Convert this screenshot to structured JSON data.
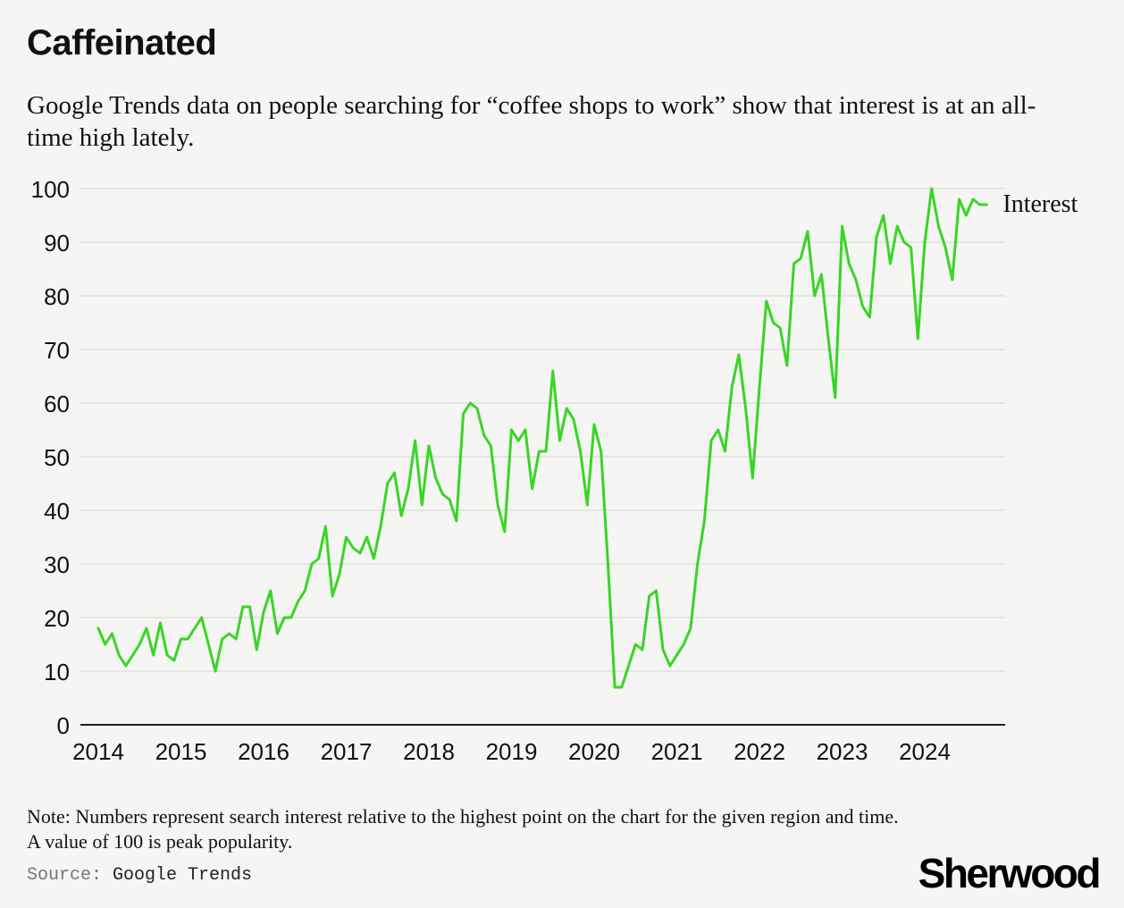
{
  "header": {
    "title": "Caffeinated",
    "subtitle": "Google Trends data on people searching for “coffee shops to work” show that interest is at an all-time high lately."
  },
  "footer": {
    "note": "Note: Numbers represent search interest relative to the highest point on the chart for the given region and time. A value of 100 is peak popularity.",
    "source_label": "Source:",
    "source_value": "Google Trends",
    "logo": "Sherwood"
  },
  "colors": {
    "line": "#39d526",
    "grid": "#e0e0dd",
    "axis": "#222222"
  },
  "chart_data": {
    "type": "line",
    "title": "Caffeinated",
    "xlabel": "",
    "ylabel": "",
    "grid": true,
    "xlim": [
      2014,
      2025
    ],
    "ylim": [
      0,
      100
    ],
    "x_ticks": [
      "2014",
      "2015",
      "2016",
      "2017",
      "2018",
      "2019",
      "2020",
      "2021",
      "2022",
      "2023",
      "2024"
    ],
    "y_ticks": [
      0,
      10,
      20,
      30,
      40,
      50,
      60,
      70,
      80,
      90,
      100
    ],
    "x_start": "2014-01",
    "step": "monthly",
    "series": [
      {
        "name": "Interest",
        "label_position": "end-right",
        "values": [
          18,
          15,
          17,
          13,
          11,
          13,
          15,
          18,
          13,
          19,
          13,
          12,
          16,
          16,
          18,
          20,
          15,
          10,
          16,
          17,
          16,
          22,
          22,
          14,
          21,
          25,
          17,
          20,
          20,
          23,
          25,
          30,
          31,
          37,
          24,
          28,
          35,
          33,
          32,
          35,
          31,
          37,
          45,
          47,
          39,
          44,
          53,
          41,
          52,
          46,
          43,
          42,
          38,
          58,
          60,
          59,
          54,
          52,
          41,
          36,
          55,
          53,
          55,
          44,
          51,
          51,
          66,
          53,
          59,
          57,
          51,
          41,
          56,
          51,
          30,
          7,
          7,
          11,
          15,
          14,
          24,
          25,
          14,
          11,
          13,
          15,
          18,
          30,
          38,
          53,
          55,
          51,
          63,
          69,
          59,
          46,
          63,
          79,
          75,
          74,
          67,
          86,
          87,
          92,
          80,
          84,
          72,
          61,
          93,
          86,
          83,
          78,
          76,
          91,
          95,
          86,
          93,
          90,
          89,
          72,
          90,
          100,
          93,
          89,
          83,
          98,
          95,
          98,
          97,
          97
        ]
      }
    ]
  }
}
